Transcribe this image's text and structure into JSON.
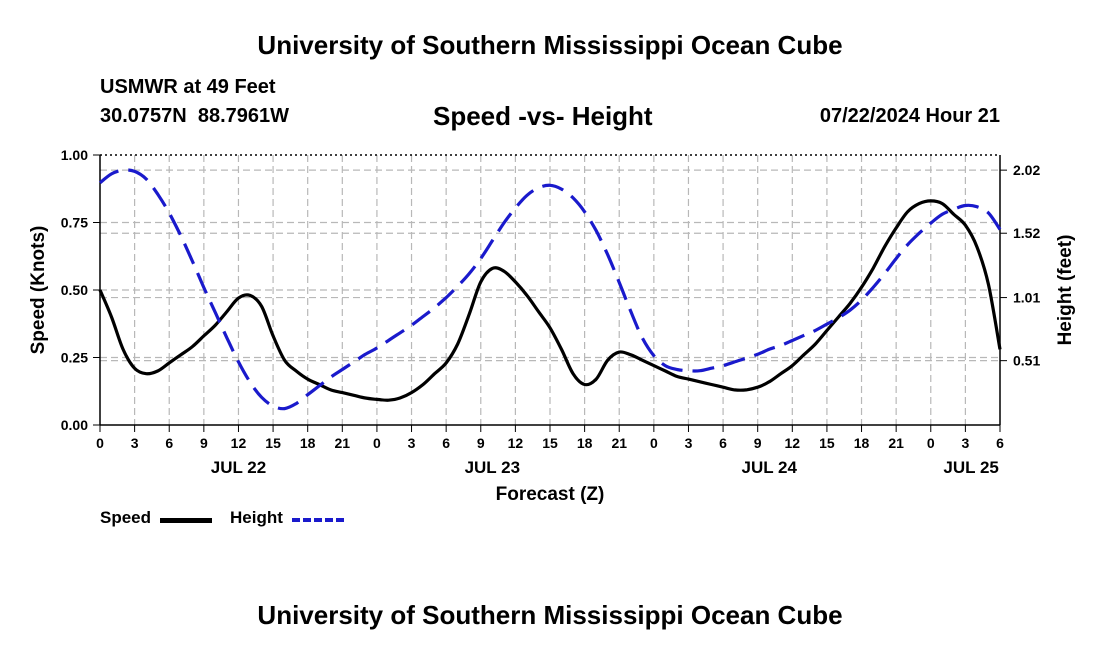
{
  "page": {
    "title_top": "University of Southern Mississippi Ocean Cube",
    "title_bottom": "University of Southern Mississippi Ocean Cube",
    "station": "USMWR at 49 Feet",
    "coords": "30.0757N  88.7961W",
    "subtitle": "Speed -vs- Height",
    "datetime": "07/22/2024 Hour 21"
  },
  "legend": {
    "speed_label": "Speed",
    "height_label": "Height",
    "speed_color": "#000000",
    "height_color": "#1a1acc"
  },
  "chart_data": {
    "type": "line",
    "title": "Speed -vs- Height",
    "xlabel": "Forecast (Z)",
    "ylabel": "Speed (Knots)",
    "y2label": "Height (feet)",
    "x_unit": "hours since 2024-07-22 00Z",
    "xlim": [
      0,
      78
    ],
    "ylim": [
      0,
      1
    ],
    "y2lim": [
      0.0,
      2.14
    ],
    "grid": true,
    "x_ticks": [
      {
        "x": 0,
        "label": "0"
      },
      {
        "x": 3,
        "label": "3"
      },
      {
        "x": 6,
        "label": "6"
      },
      {
        "x": 9,
        "label": "9"
      },
      {
        "x": 12,
        "label": "12"
      },
      {
        "x": 15,
        "label": "15"
      },
      {
        "x": 18,
        "label": "18"
      },
      {
        "x": 21,
        "label": "21"
      },
      {
        "x": 24,
        "label": "0"
      },
      {
        "x": 27,
        "label": "3"
      },
      {
        "x": 30,
        "label": "6"
      },
      {
        "x": 33,
        "label": "9"
      },
      {
        "x": 36,
        "label": "12"
      },
      {
        "x": 39,
        "label": "15"
      },
      {
        "x": 42,
        "label": "18"
      },
      {
        "x": 45,
        "label": "21"
      },
      {
        "x": 48,
        "label": "0"
      },
      {
        "x": 51,
        "label": "3"
      },
      {
        "x": 54,
        "label": "6"
      },
      {
        "x": 57,
        "label": "9"
      },
      {
        "x": 60,
        "label": "12"
      },
      {
        "x": 63,
        "label": "15"
      },
      {
        "x": 66,
        "label": "18"
      },
      {
        "x": 69,
        "label": "21"
      },
      {
        "x": 72,
        "label": "0"
      },
      {
        "x": 75,
        "label": "3"
      },
      {
        "x": 78,
        "label": "6"
      }
    ],
    "date_labels": [
      {
        "x": 12,
        "label": "JUL 22"
      },
      {
        "x": 34,
        "label": "JUL 23"
      },
      {
        "x": 58,
        "label": "JUL 24"
      },
      {
        "x": 75.5,
        "label": "JUL 25"
      }
    ],
    "y_ticks": [
      "0.00",
      "0.25",
      "0.50",
      "0.75",
      "1.00"
    ],
    "y2_ticks": [
      {
        "v": 0.51,
        "label": "0.51"
      },
      {
        "v": 1.01,
        "label": "1.01"
      },
      {
        "v": 1.52,
        "label": "1.52"
      },
      {
        "v": 2.02,
        "label": "2.02"
      }
    ],
    "series": [
      {
        "name": "Speed",
        "axis": "left",
        "style": "solid",
        "color": "#000000",
        "x": [
          0,
          1,
          2,
          3,
          4,
          5,
          6,
          7,
          8,
          9,
          10,
          11,
          12,
          13,
          14,
          15,
          16,
          17,
          18,
          19,
          20,
          21,
          22,
          23,
          24,
          25,
          26,
          27,
          28,
          29,
          30,
          31,
          32,
          33,
          34,
          35,
          36,
          37,
          38,
          39,
          40,
          41,
          42,
          43,
          44,
          45,
          46,
          47,
          48,
          49,
          50,
          51,
          52,
          53,
          54,
          55,
          56,
          57,
          58,
          59,
          60,
          61,
          62,
          63,
          64,
          65,
          66,
          67,
          68,
          69,
          70,
          71,
          72,
          73,
          74,
          75,
          76,
          77,
          78
        ],
        "values": [
          0.5,
          0.4,
          0.28,
          0.21,
          0.19,
          0.2,
          0.23,
          0.26,
          0.29,
          0.33,
          0.37,
          0.42,
          0.47,
          0.48,
          0.44,
          0.33,
          0.24,
          0.2,
          0.17,
          0.15,
          0.13,
          0.12,
          0.11,
          0.1,
          0.095,
          0.092,
          0.1,
          0.12,
          0.15,
          0.19,
          0.23,
          0.3,
          0.41,
          0.53,
          0.58,
          0.57,
          0.53,
          0.48,
          0.42,
          0.36,
          0.28,
          0.19,
          0.15,
          0.17,
          0.24,
          0.27,
          0.26,
          0.24,
          0.22,
          0.2,
          0.18,
          0.17,
          0.16,
          0.15,
          0.14,
          0.13,
          0.13,
          0.14,
          0.16,
          0.19,
          0.22,
          0.26,
          0.3,
          0.35,
          0.4,
          0.45,
          0.51,
          0.58,
          0.66,
          0.73,
          0.79,
          0.82,
          0.83,
          0.82,
          0.78,
          0.74,
          0.66,
          0.52,
          0.28
        ]
      },
      {
        "name": "Height",
        "axis": "right",
        "style": "dashed",
        "color": "#1a1acc",
        "x": [
          0,
          1,
          2,
          3,
          4,
          5,
          6,
          7,
          8,
          9,
          10,
          11,
          12,
          13,
          14,
          15,
          16,
          17,
          18,
          19,
          20,
          21,
          22,
          23,
          24,
          25,
          26,
          27,
          28,
          29,
          30,
          31,
          32,
          33,
          34,
          35,
          36,
          37,
          38,
          39,
          40,
          41,
          42,
          43,
          44,
          45,
          46,
          47,
          48,
          49,
          50,
          51,
          52,
          53,
          54,
          55,
          56,
          57,
          58,
          59,
          60,
          61,
          62,
          63,
          64,
          65,
          66,
          67,
          68,
          69,
          70,
          71,
          72,
          73,
          74,
          75,
          76,
          77,
          78
        ],
        "values": [
          1.92,
          1.99,
          2.02,
          2.01,
          1.95,
          1.83,
          1.68,
          1.5,
          1.3,
          1.09,
          0.89,
          0.69,
          0.5,
          0.34,
          0.22,
          0.15,
          0.13,
          0.17,
          0.24,
          0.31,
          0.38,
          0.44,
          0.5,
          0.56,
          0.61,
          0.67,
          0.73,
          0.79,
          0.86,
          0.93,
          1.01,
          1.1,
          1.2,
          1.32,
          1.46,
          1.6,
          1.72,
          1.82,
          1.88,
          1.9,
          1.87,
          1.8,
          1.69,
          1.54,
          1.35,
          1.13,
          0.9,
          0.69,
          0.55,
          0.47,
          0.44,
          0.43,
          0.43,
          0.45,
          0.47,
          0.5,
          0.53,
          0.56,
          0.6,
          0.63,
          0.67,
          0.71,
          0.75,
          0.8,
          0.85,
          0.91,
          0.99,
          1.09,
          1.2,
          1.32,
          1.43,
          1.52,
          1.6,
          1.67,
          1.71,
          1.74,
          1.73,
          1.68,
          1.55
        ]
      }
    ]
  }
}
